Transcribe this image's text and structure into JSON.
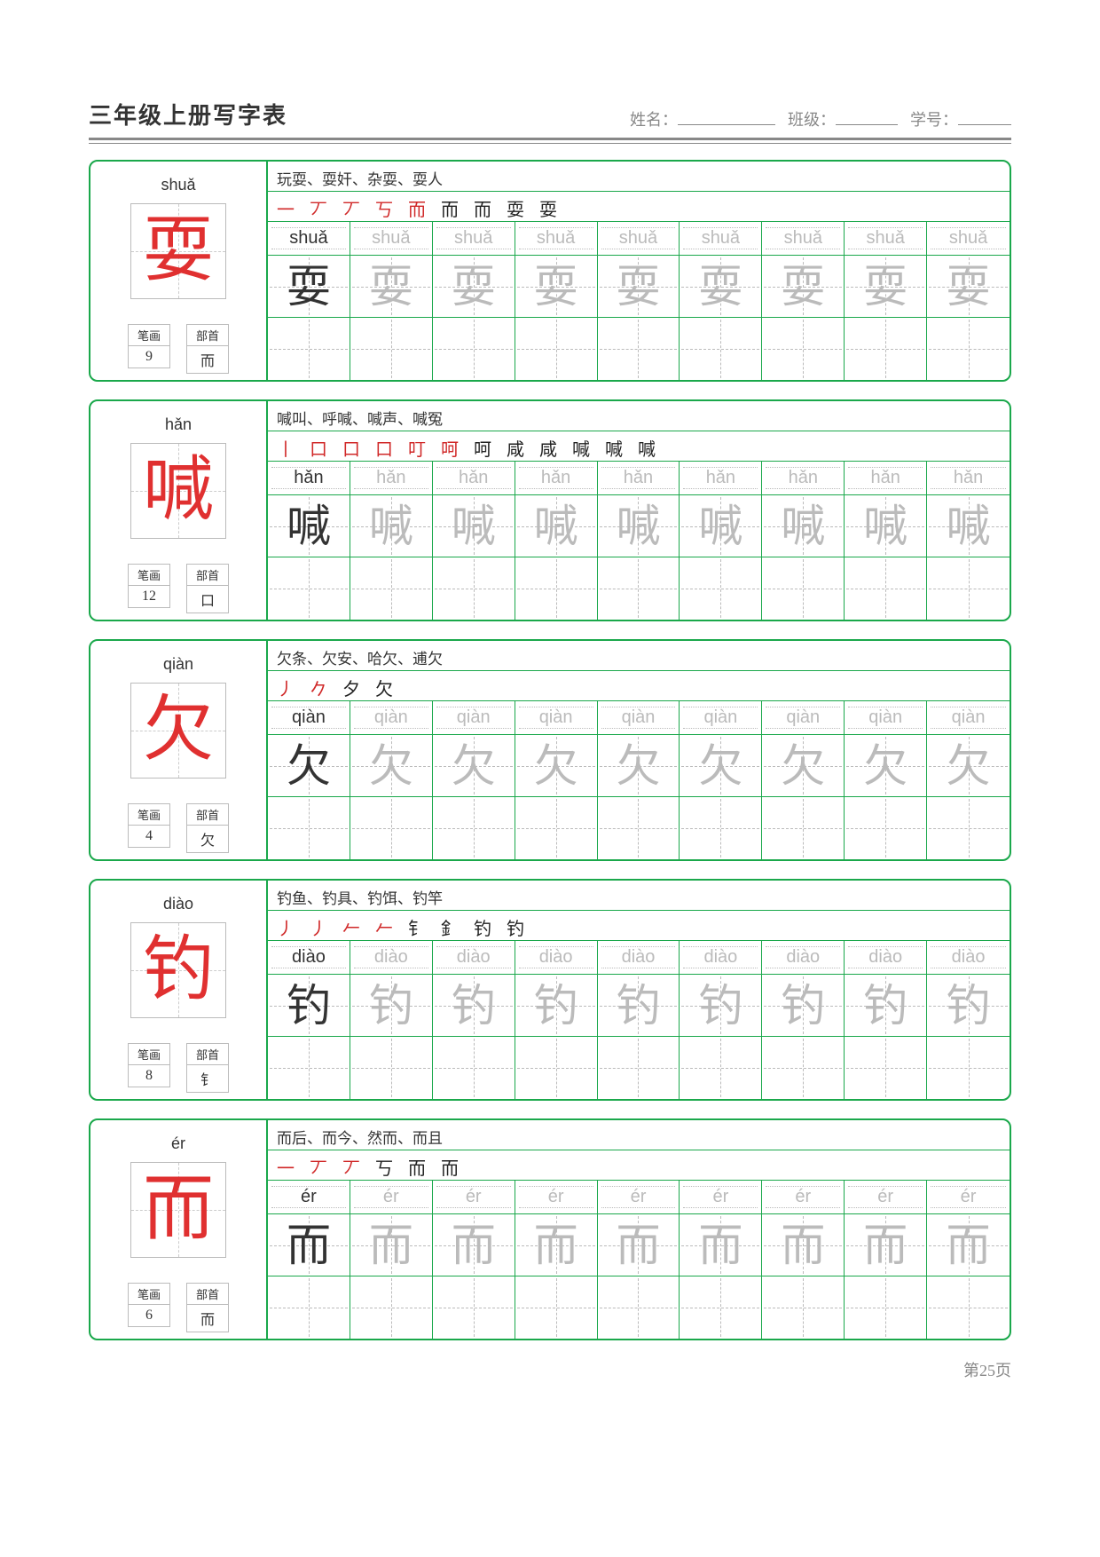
{
  "title": "三年级上册写字表",
  "header_fields": {
    "name_label": "姓名：",
    "class_label": "班级：",
    "id_label": "学号："
  },
  "blank_widths": {
    "name": 110,
    "class": 70,
    "id": 60
  },
  "page_label": "第25页",
  "labels": {
    "strokes": "笔画",
    "radical": "部首"
  },
  "colors": {
    "border": "#1aa84b",
    "red": "#e03030",
    "gray": "#bbbbbb",
    "text": "#333333"
  },
  "practice_cols": 9,
  "chars": [
    {
      "char": "耍",
      "pinyin": "shuǎ",
      "strokes": 9,
      "radical": "而",
      "words": "玩耍、耍奸、杂耍、耍人",
      "stroke_seq": "一 丆 丆 丂 而 而 而 耍 耍"
    },
    {
      "char": "喊",
      "pinyin": "hǎn",
      "strokes": 12,
      "radical": "口",
      "words": "喊叫、呼喊、喊声、喊冤",
      "stroke_seq": "丨 口 口 口 叮 呵 呵 咸 咸 喊 喊 喊"
    },
    {
      "char": "欠",
      "pinyin": "qiàn",
      "strokes": 4,
      "radical": "欠",
      "words": "欠条、欠安、哈欠、逋欠",
      "stroke_seq": "丿 𠂊 夕 欠"
    },
    {
      "char": "钓",
      "pinyin": "diào",
      "strokes": 8,
      "radical": "钅",
      "words": "钓鱼、钓具、钓饵、钓竿",
      "stroke_seq": "丿 丿 𠂉 𠂉 钅 釒 钓 钓"
    },
    {
      "char": "而",
      "pinyin": "ér",
      "strokes": 6,
      "radical": "而",
      "words": "而后、而今、然而、而且",
      "stroke_seq": "一 丆 丆 丂 而 而"
    }
  ]
}
